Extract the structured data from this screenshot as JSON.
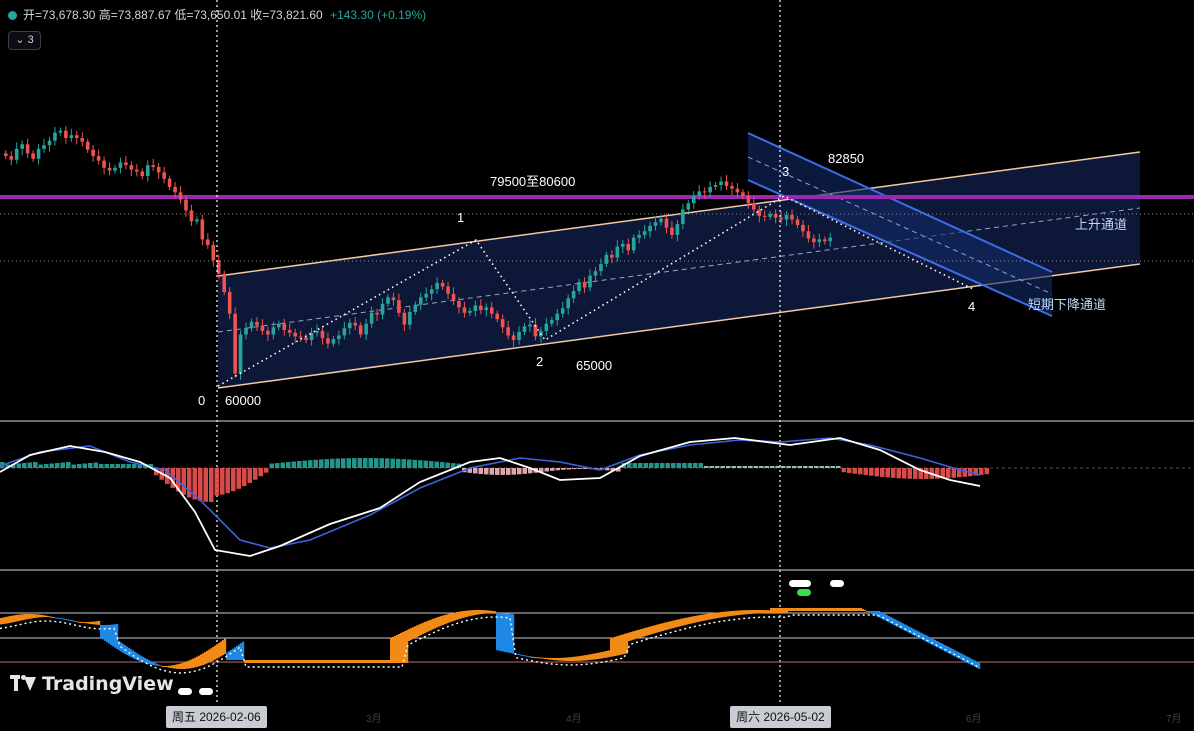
{
  "ohlc": {
    "open_label": "开",
    "open": "73,678.30",
    "high_label": "高",
    "high": "73,887.67",
    "low_label": "低",
    "low": "73,650.01",
    "close_label": "收",
    "close": "73,821.60",
    "change": "+143.30 (+0.19%)"
  },
  "collapse_button": {
    "label": "3"
  },
  "brand": {
    "name": "TradingView"
  },
  "date_tags": [
    "周五 2026-02-06",
    "周六 2026-05-02"
  ],
  "axis_labels": [
    "3月",
    "4月",
    "6月",
    "7月"
  ],
  "annotations": {
    "wave0": "0",
    "wave0_price": "60000",
    "wave1": "1",
    "wave2": "2",
    "wave2_price": "65000",
    "wave3": "3",
    "wave3_price": "82850",
    "wave4": "4",
    "resistance_zone": "79500至80600",
    "up_channel": "上升通道",
    "down_channel": "短期下降通道"
  },
  "colors": {
    "up": "#26a69a",
    "down": "#ef5350",
    "resistance": "#9c27b0",
    "channel_fill": "#0e1a3d",
    "channel_line": "#f3c9a8",
    "down_channel": "#3d6ce8",
    "osc_orange": "#f28a17",
    "osc_blue": "#1e88e5"
  },
  "chart_data": {
    "type": "candlestick",
    "price_levels": {
      "wave0_low": 60000,
      "wave2_low": 65000,
      "wave3_high": 82850,
      "resistance_zone": [
        79500,
        80600
      ]
    },
    "y_range": [
      58000,
      89000
    ],
    "series_close": [
      85600,
      85200,
      86400,
      86900,
      85900,
      85300,
      86400,
      86800,
      87300,
      88200,
      88400,
      87600,
      87900,
      87600,
      87200,
      86300,
      85600,
      85100,
      84300,
      84000,
      84300,
      84900,
      84600,
      84100,
      83900,
      83400,
      84600,
      84400,
      83800,
      83100,
      82200,
      81600,
      80800,
      79600,
      78400,
      78600,
      76400,
      75800,
      74100,
      72600,
      70600,
      68200,
      61600,
      65900,
      66600,
      67300,
      66900,
      66300,
      65900,
      66700,
      67100,
      66400,
      66100,
      65700,
      65600,
      65300,
      66100,
      66300,
      65500,
      64900,
      65400,
      65800,
      66600,
      67200,
      66900,
      65900,
      67100,
      68300,
      68100,
      69300,
      70000,
      69700,
      68300,
      67000,
      68400,
      69200,
      70000,
      70400,
      70900,
      71600,
      71200,
      70400,
      69600,
      68900,
      68300,
      68500,
      69100,
      68600,
      68900,
      68200,
      67600,
      66700,
      65800,
      65300,
      66200,
      66800,
      67000,
      65700,
      66300,
      67100,
      67500,
      68200,
      68800,
      69900,
      70700,
      71700,
      71100,
      72400,
      72900,
      73700,
      74700,
      74400,
      75600,
      75900,
      75200,
      76600,
      76900,
      77300,
      77900,
      78300,
      78700,
      77700,
      76900,
      78100,
      79700,
      80400,
      81200,
      81700,
      81600,
      82200,
      82400,
      82800,
      82300,
      82000,
      81600,
      81200,
      80400,
      79700,
      79000,
      78900,
      79200,
      78800,
      78600,
      79100,
      78600,
      78000,
      77300,
      76500,
      76100,
      76400,
      76200,
      76600
    ],
    "indicators": [
      {
        "type": "macd",
        "series": [
          "macd",
          "signal",
          "histogram"
        ]
      },
      {
        "type": "oscillator",
        "series": [
          "value",
          "signal"
        ]
      }
    ]
  }
}
